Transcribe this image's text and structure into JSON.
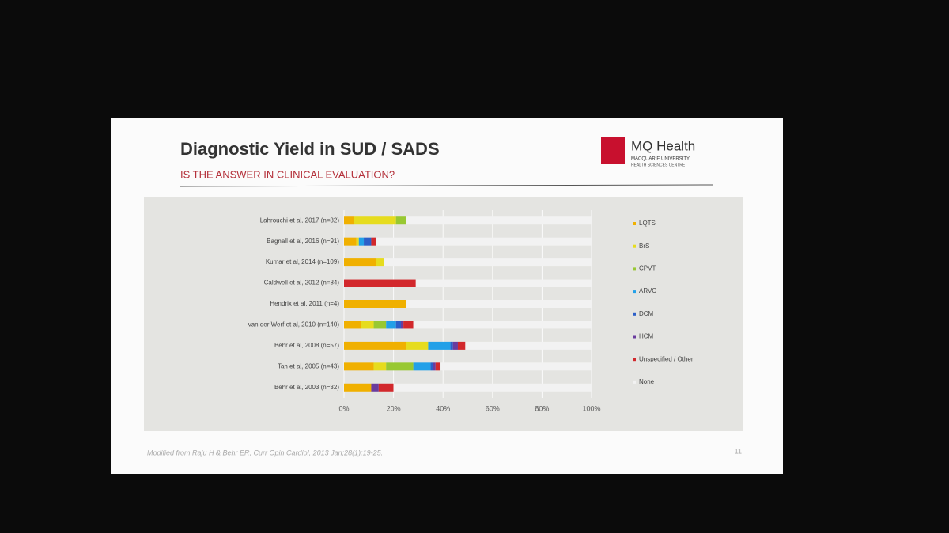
{
  "slide": {
    "title": "Diagnostic Yield in SUD / SADS",
    "subtitle": "IS THE ANSWER IN CLINICAL EVALUATION?",
    "logo": "MQ Health",
    "logo_line1": "MACQUARIE UNIVERSITY",
    "logo_line2": "HEALTH SCIENCES CENTRE",
    "footnote": "Modified from Raju H & Behr ER, Curr Opin Cardiol, 2013 Jan;28(1):19-25.",
    "page_number": "11"
  },
  "chart_data": {
    "type": "stacked-bar-horizontal",
    "categories": [
      "Lahrouchi et al, 2017 (n=82)",
      "Bagnall et al, 2016 (n=91)",
      "Kumar et al, 2014 (n=109)",
      "Caldwell et al, 2012 (n=84)",
      "Hendrix et al, 2011 (n=4)",
      "van der Werf et al, 2010 (n=140)",
      "Behr et al, 2008 (n=57)",
      "Tan et al, 2005 (n=43)",
      "Behr et al, 2003 (n=32)"
    ],
    "series": [
      {
        "name": "LQTS",
        "color": "#f0b000",
        "values": [
          4,
          5,
          13,
          0,
          25,
          7,
          25,
          12,
          11
        ]
      },
      {
        "name": "BrS",
        "color": "#e6dc1e",
        "values": [
          17,
          1,
          3,
          0,
          0,
          5,
          9,
          5,
          0
        ]
      },
      {
        "name": "CPVT",
        "color": "#98c832",
        "values": [
          4,
          0,
          0,
          0,
          0,
          5,
          0,
          11,
          0
        ]
      },
      {
        "name": "ARVC",
        "color": "#22a0e8",
        "values": [
          0,
          2,
          0,
          0,
          0,
          4,
          9,
          7,
          0
        ]
      },
      {
        "name": "DCM",
        "color": "#2c5fc8",
        "values": [
          0,
          3,
          0,
          0,
          0,
          2,
          1,
          1,
          0
        ]
      },
      {
        "name": "HCM",
        "color": "#6a3c9e",
        "values": [
          0,
          0,
          0,
          0,
          0,
          1,
          2,
          1,
          3
        ]
      },
      {
        "name": "Unspecified / Other",
        "color": "#d2282c",
        "values": [
          0,
          2,
          0,
          29,
          0,
          4,
          3,
          2,
          6
        ]
      },
      {
        "name": "None",
        "color": "#f2f2f2",
        "values": [
          75,
          87,
          84,
          71,
          75,
          72,
          51,
          61,
          80
        ]
      }
    ],
    "xlim": [
      0,
      100
    ],
    "xticks": [
      {
        "value": 0,
        "label": "0%"
      },
      {
        "value": 20,
        "label": "20%"
      },
      {
        "value": 40,
        "label": "40%"
      },
      {
        "value": 60,
        "label": "60%"
      },
      {
        "value": 80,
        "label": "80%"
      },
      {
        "value": 100,
        "label": "100%"
      }
    ],
    "grid": true,
    "legend": "right"
  }
}
